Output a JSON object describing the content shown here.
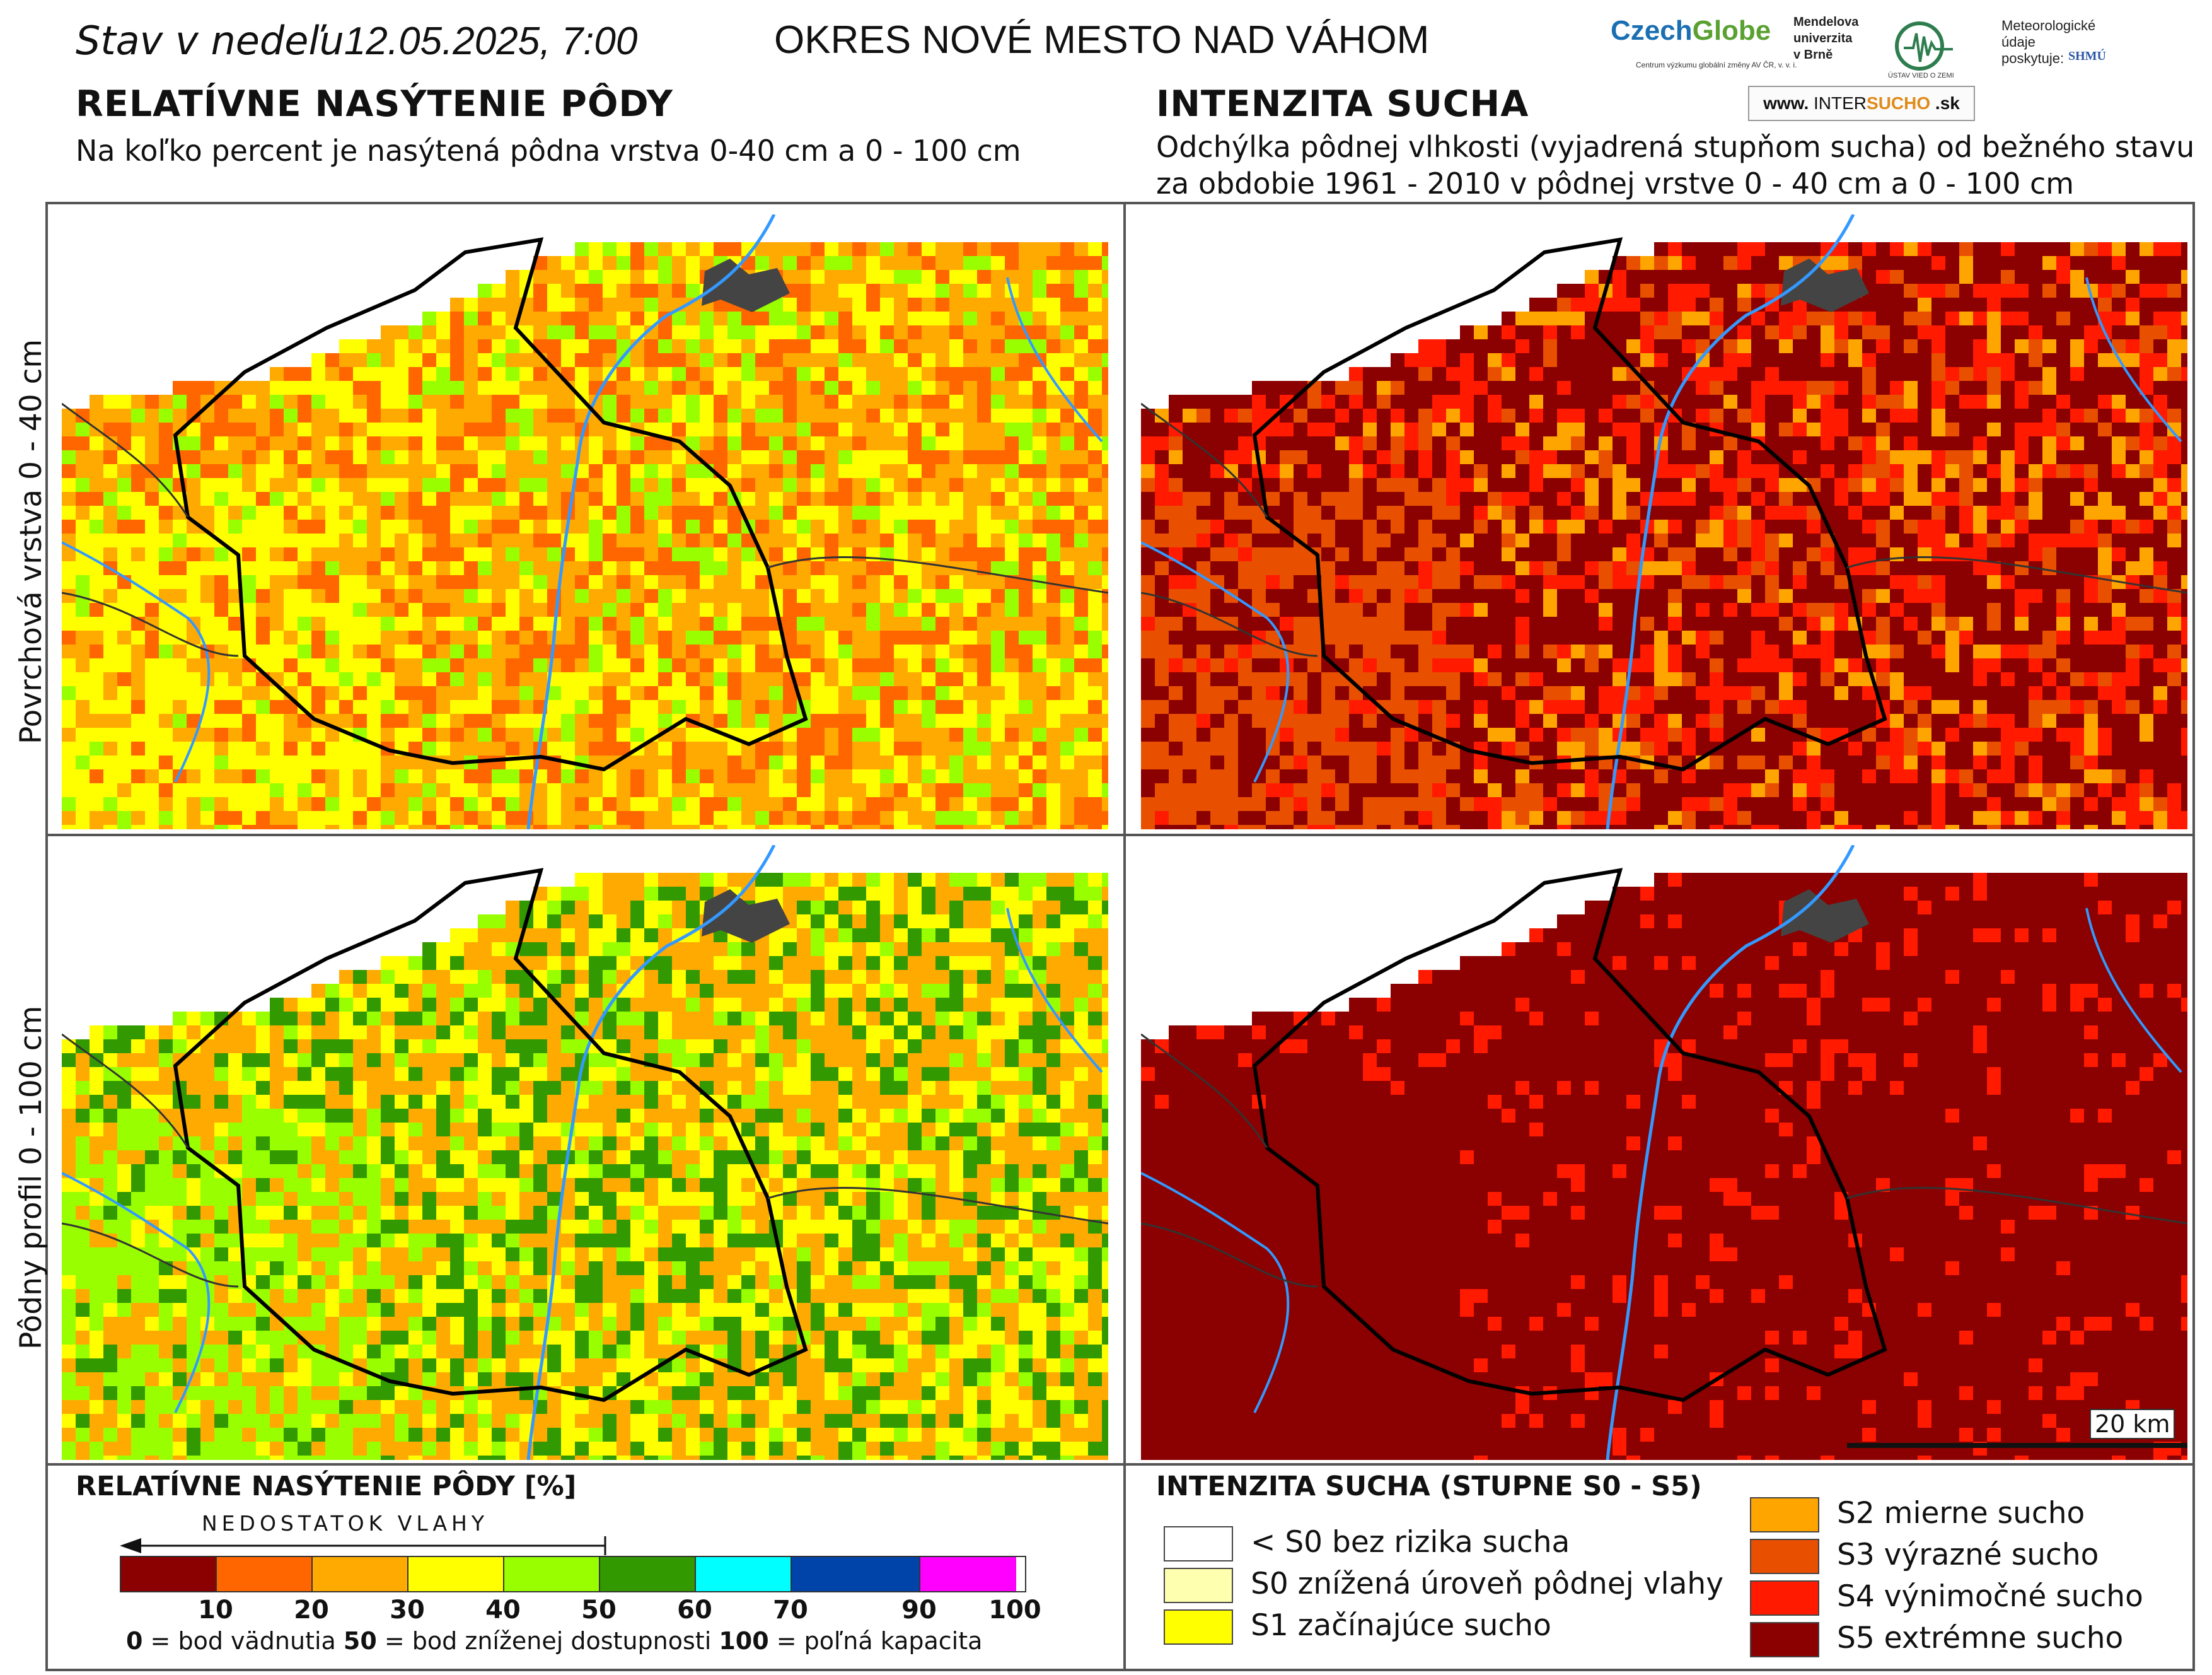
{
  "header": {
    "date_prefix": "Stav  v  nedeľu",
    "date_value": "12.05.2025, 7:00",
    "district": "OKRES  NOVÉ MESTO NAD VÁHOM"
  },
  "left_section": {
    "title": "RELATÍVNE NASÝTENIE PÔDY",
    "subtitle": "Na koľko percent je nasýtená pôdna vrstva 0-40 cm a 0 - 100 cm"
  },
  "right_section": {
    "title": "INTENZITA SUCHA",
    "subtitle_line1": "Odchýlka pôdnej vlhkosti (vyjadrená stupňom sucha) od bežného stavu",
    "subtitle_line2": "za obdobie 1961 - 2010 v pôdnej vrstve 0 - 40 cm a 0 - 100 cm"
  },
  "logos": {
    "czechglobe_a": "Czech",
    "czechglobe_b": "Globe",
    "czechglobe_sub": "Centrum výzkumu globální změny AV ČR, v. v. i.",
    "mendel": [
      "Mendelova",
      "univerzita",
      "v Brně"
    ],
    "uvz_text": "ÚSTAV VIED O ZEMI",
    "met_lines": [
      "Meteorologické",
      "údaje",
      "poskytuje:"
    ],
    "shmu": "SHMÚ",
    "intersucho_a": "www. ",
    "intersucho_b": "INTER",
    "intersucho_c": "SUCHO",
    "intersucho_d": " .sk"
  },
  "row_labels": {
    "top": "Povrchová vrstva 0 - 40 cm",
    "bottom": "Pôdny profil 0 - 100 cm"
  },
  "scale": {
    "label": "20 km"
  },
  "saturation_legend": {
    "title": "RELATÍVNE NASÝTENIE PÔDY [%]",
    "arrow_label": "NEDOSTATOK VLAHY",
    "colors": [
      "#8b0000",
      "#ff6600",
      "#ffaa00",
      "#ffff00",
      "#99ff00",
      "#339900",
      "#00ffff",
      "#0044aa",
      "#ff00ff"
    ],
    "ticks": [
      "10",
      "20",
      "30",
      "40",
      "50",
      "60",
      "70",
      "90",
      "100"
    ],
    "expl_0_num": "0",
    "expl_0_text": " = bod vädnutia   ",
    "expl_50_num": "50",
    "expl_50_text": " = bod zníženej dostupnosti   ",
    "expl_100_num": "100",
    "expl_100_text": " = poľná kapacita"
  },
  "drought_legend": {
    "title": "INTENZITA SUCHA (STUPNE S0 - S5)",
    "items_left": [
      {
        "color": "#ffffff",
        "label": "< S0 bez rizika sucha"
      },
      {
        "color": "#ffffb0",
        "label": "S0 znížená úroveň pôdnej vlahy"
      },
      {
        "color": "#ffff00",
        "label": "S1 začínajúce sucho"
      }
    ],
    "items_right": [
      {
        "color": "#ffa500",
        "label": "S2 mierne sucho"
      },
      {
        "color": "#e85000",
        "label": "S3 výrazné sucho"
      },
      {
        "color": "#ff1a00",
        "label": "S4 výnimočné sucho"
      },
      {
        "color": "#8b0000",
        "label": "S5 extrémne sucho"
      }
    ]
  }
}
